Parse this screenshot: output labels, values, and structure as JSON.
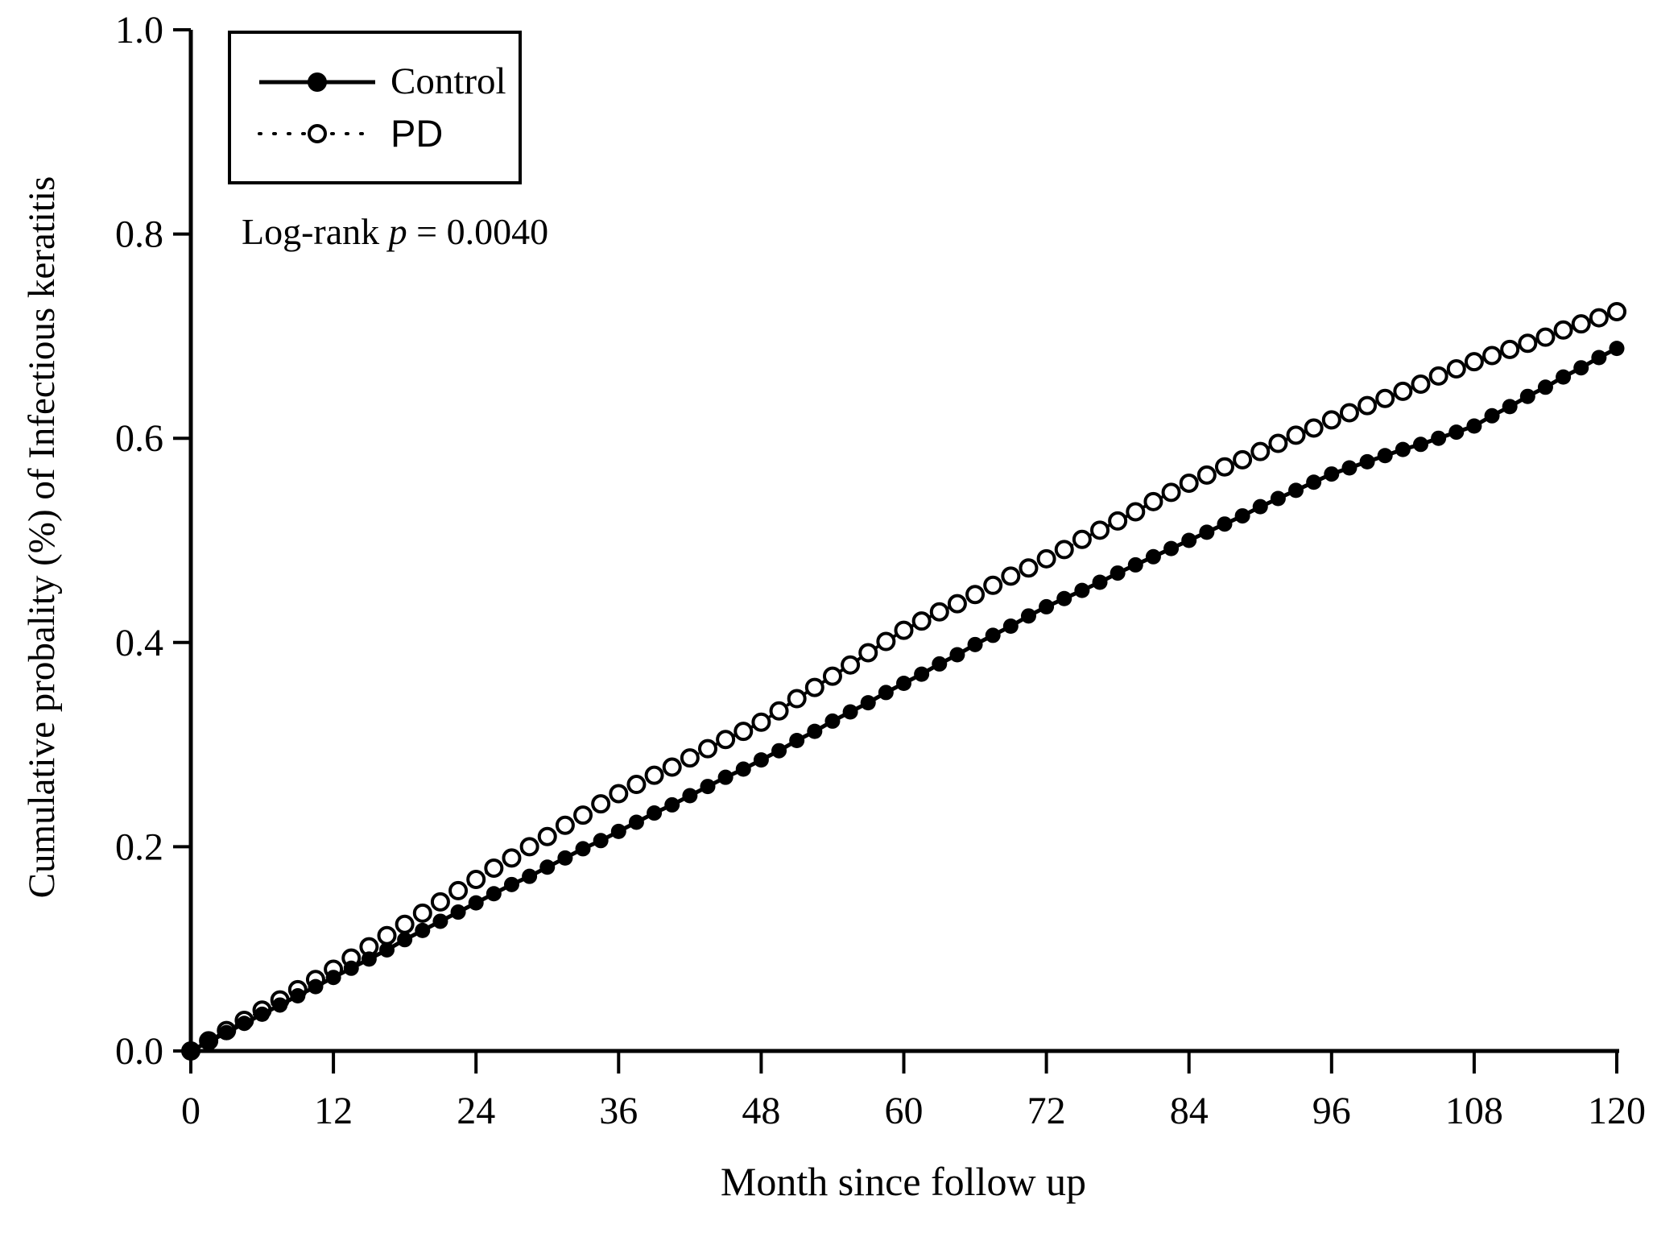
{
  "figure": {
    "background": "#ffffff",
    "ink": "#000000"
  },
  "annotation": {
    "pre": "Log-rank ",
    "var": "p",
    "post": " = 0.0040"
  },
  "legend": {
    "position": "top-left",
    "items": [
      {
        "label": "Control",
        "marker": "filled-circle",
        "line": "solid"
      },
      {
        "label": "PD",
        "marker": "open-circle",
        "line": "dotted"
      }
    ]
  },
  "chart_data": {
    "type": "line",
    "title": "",
    "xlabel": "Month since follow up",
    "ylabel": "Cumulative probality (%) of Infectious keratitis",
    "xlim": [
      0,
      120
    ],
    "ylim": [
      0.0,
      1.0
    ],
    "xticks": [
      0,
      12,
      24,
      36,
      48,
      60,
      72,
      84,
      96,
      108,
      120
    ],
    "yticks": [
      0.0,
      0.2,
      0.4,
      0.6,
      0.8,
      1.0
    ],
    "grid": false,
    "legend_position": "top-left",
    "annotation_text": "Log-rank p = 0.0040",
    "x_months": [
      0,
      1.5,
      3,
      4.5,
      6,
      7.5,
      9,
      10.5,
      12,
      13.5,
      15,
      16.5,
      18,
      19.5,
      21,
      22.5,
      24,
      25.5,
      27,
      28.5,
      30,
      31.5,
      33,
      34.5,
      36,
      37.5,
      39,
      40.5,
      42,
      43.5,
      45,
      46.5,
      48,
      49.5,
      51,
      52.5,
      54,
      55.5,
      57,
      58.5,
      60,
      61.5,
      63,
      64.5,
      66,
      67.5,
      69,
      70.5,
      72,
      73.5,
      75,
      76.5,
      78,
      79.5,
      81,
      82.5,
      84,
      85.5,
      87,
      88.5,
      90,
      91.5,
      93,
      94.5,
      96,
      97.5,
      99,
      100.5,
      102,
      103.5,
      105,
      106.5,
      108,
      109.5,
      111,
      112.5,
      114,
      115.5,
      117,
      118.5,
      120
    ],
    "series": [
      {
        "name": "PD",
        "marker": "open-circle",
        "line": "dotted",
        "values": [
          0.0,
          0.01,
          0.02,
          0.03,
          0.04,
          0.05,
          0.06,
          0.07,
          0.08,
          0.091,
          0.102,
          0.113,
          0.124,
          0.135,
          0.146,
          0.157,
          0.168,
          0.179,
          0.189,
          0.2,
          0.21,
          0.221,
          0.231,
          0.242,
          0.252,
          0.261,
          0.27,
          0.278,
          0.287,
          0.296,
          0.305,
          0.313,
          0.322,
          0.333,
          0.345,
          0.356,
          0.367,
          0.378,
          0.39,
          0.401,
          0.412,
          0.421,
          0.43,
          0.438,
          0.447,
          0.456,
          0.465,
          0.473,
          0.482,
          0.491,
          0.501,
          0.51,
          0.519,
          0.528,
          0.538,
          0.547,
          0.556,
          0.564,
          0.572,
          0.579,
          0.587,
          0.595,
          0.603,
          0.61,
          0.618,
          0.625,
          0.632,
          0.639,
          0.646,
          0.653,
          0.661,
          0.668,
          0.675,
          0.681,
          0.687,
          0.693,
          0.699,
          0.706,
          0.712,
          0.718,
          0.724
        ]
      },
      {
        "name": "Control",
        "marker": "filled-circle",
        "line": "solid",
        "values": [
          0.0,
          0.009,
          0.018,
          0.027,
          0.036,
          0.045,
          0.054,
          0.063,
          0.072,
          0.081,
          0.09,
          0.099,
          0.109,
          0.118,
          0.127,
          0.136,
          0.145,
          0.154,
          0.163,
          0.171,
          0.18,
          0.189,
          0.198,
          0.206,
          0.215,
          0.224,
          0.233,
          0.241,
          0.25,
          0.259,
          0.268,
          0.276,
          0.285,
          0.294,
          0.304,
          0.313,
          0.323,
          0.332,
          0.341,
          0.351,
          0.36,
          0.369,
          0.379,
          0.388,
          0.398,
          0.407,
          0.416,
          0.426,
          0.435,
          0.443,
          0.451,
          0.459,
          0.468,
          0.476,
          0.484,
          0.492,
          0.5,
          0.508,
          0.516,
          0.524,
          0.533,
          0.541,
          0.549,
          0.557,
          0.565,
          0.571,
          0.577,
          0.583,
          0.589,
          0.594,
          0.6,
          0.606,
          0.612,
          0.622,
          0.631,
          0.641,
          0.65,
          0.66,
          0.669,
          0.679,
          0.688
        ]
      }
    ]
  }
}
